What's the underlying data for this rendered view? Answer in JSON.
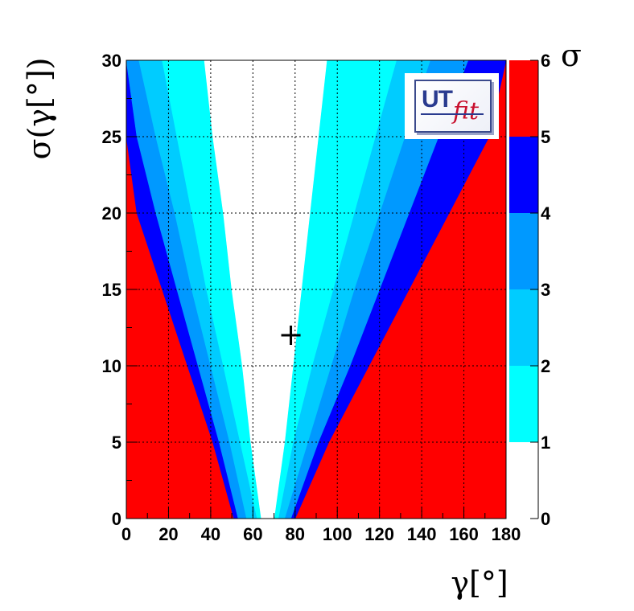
{
  "chart_data": {
    "type": "heatmap",
    "xlabel": "γ[°]",
    "ylabel": "σ(γ[°])",
    "colorbar_label": "σ",
    "xlim": [
      0,
      180
    ],
    "ylim": [
      0,
      30
    ],
    "x_ticks": [
      0,
      20,
      40,
      60,
      80,
      100,
      120,
      140,
      160,
      180
    ],
    "y_ticks": [
      0,
      5,
      10,
      15,
      20,
      25,
      30
    ],
    "colorbar_ticks": [
      0,
      1,
      2,
      3,
      4,
      5,
      6
    ],
    "grid": true,
    "levels": [
      {
        "range": [
          0,
          1
        ],
        "color": "#ffffff"
      },
      {
        "range": [
          1,
          2
        ],
        "color": "#00ffff"
      },
      {
        "range": [
          2,
          3
        ],
        "color": "#00ccff"
      },
      {
        "range": [
          3,
          4
        ],
        "color": "#0099ff"
      },
      {
        "range": [
          4,
          5
        ],
        "color": "#0000ff"
      },
      {
        "range": [
          5,
          6
        ],
        "color": "#ff0000"
      }
    ],
    "boundaries": {
      "y": [
        0,
        5,
        10,
        15,
        20,
        25,
        30
      ],
      "left": [
        [
          64,
          59,
          55,
          50,
          46,
          41,
          37
        ],
        [
          62,
          54,
          46,
          38,
          31,
          24,
          17
        ],
        [
          57,
          49,
          40,
          31,
          23,
          14,
          6
        ],
        [
          53,
          44,
          34,
          24,
          14,
          5,
          0
        ],
        [
          51,
          41,
          29,
          17,
          5,
          0,
          0
        ],
        [
          48,
          37,
          21,
          2,
          0,
          0,
          0
        ]
      ],
      "right": [
        [
          70,
          75,
          79,
          83,
          87,
          91,
          95
        ],
        [
          72,
          79,
          88,
          98,
          108,
          118,
          128
        ],
        [
          75,
          86,
          97,
          108,
          120,
          132,
          144
        ],
        [
          78,
          91,
          106,
          120,
          134,
          148,
          162
        ],
        [
          80,
          96,
          115,
          134,
          153,
          172,
          180
        ],
        [
          82,
          99,
          121,
          145,
          169,
          180,
          180
        ]
      ]
    },
    "marker": {
      "x": 78,
      "y": 12,
      "symbol": "+"
    },
    "logo_text": [
      "UT",
      "fit"
    ]
  }
}
